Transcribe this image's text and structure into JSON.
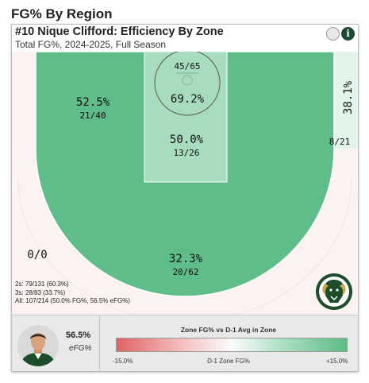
{
  "section_title": "FG% By Region",
  "card": {
    "title": "#10 Nique Clifford: Efficiency By Zone",
    "subtitle": "Total FG%, 2024-2025, Full Season",
    "info_icon": "i"
  },
  "zones": {
    "restricted": {
      "pct": "69.2%",
      "frac": "45/65"
    },
    "paint": {
      "pct": "50.0%",
      "frac": "13/26"
    },
    "midrange": {
      "pct": "52.5%",
      "frac": "21/40"
    },
    "right_corner": {
      "pct": "38.1%",
      "frac": "8/21"
    },
    "left_corner": {
      "pct": "0/0"
    },
    "above_break_three": {
      "pct": "32.3%",
      "frac": "20/62"
    }
  },
  "stats": {
    "twos": "2s: 79/131 (60.3%)",
    "threes": "3s: 28/83 (33.7%)",
    "all": "All: 107/214 (50.0% FG%, 56.5% eFG%)"
  },
  "footer": {
    "efg_value": "56.5%",
    "efg_label": "eFG%",
    "legend_title": "Zone FG% vs D-1 Avg in Zone",
    "legend_min": "-15.0%",
    "legend_mid": "D-1 Zone FG%",
    "legend_max": "+15.0%"
  },
  "colors": {
    "midrange_fill": "#5fbd8a",
    "paint_fill": "#a8dcbe",
    "restricted_fill": "#a8dcbe",
    "corner_right_fill": "#e3f4ea",
    "three_fill": "#fbf3f2",
    "brand_green": "#1e4d2b",
    "brand_gold": "#c8a84a"
  }
}
